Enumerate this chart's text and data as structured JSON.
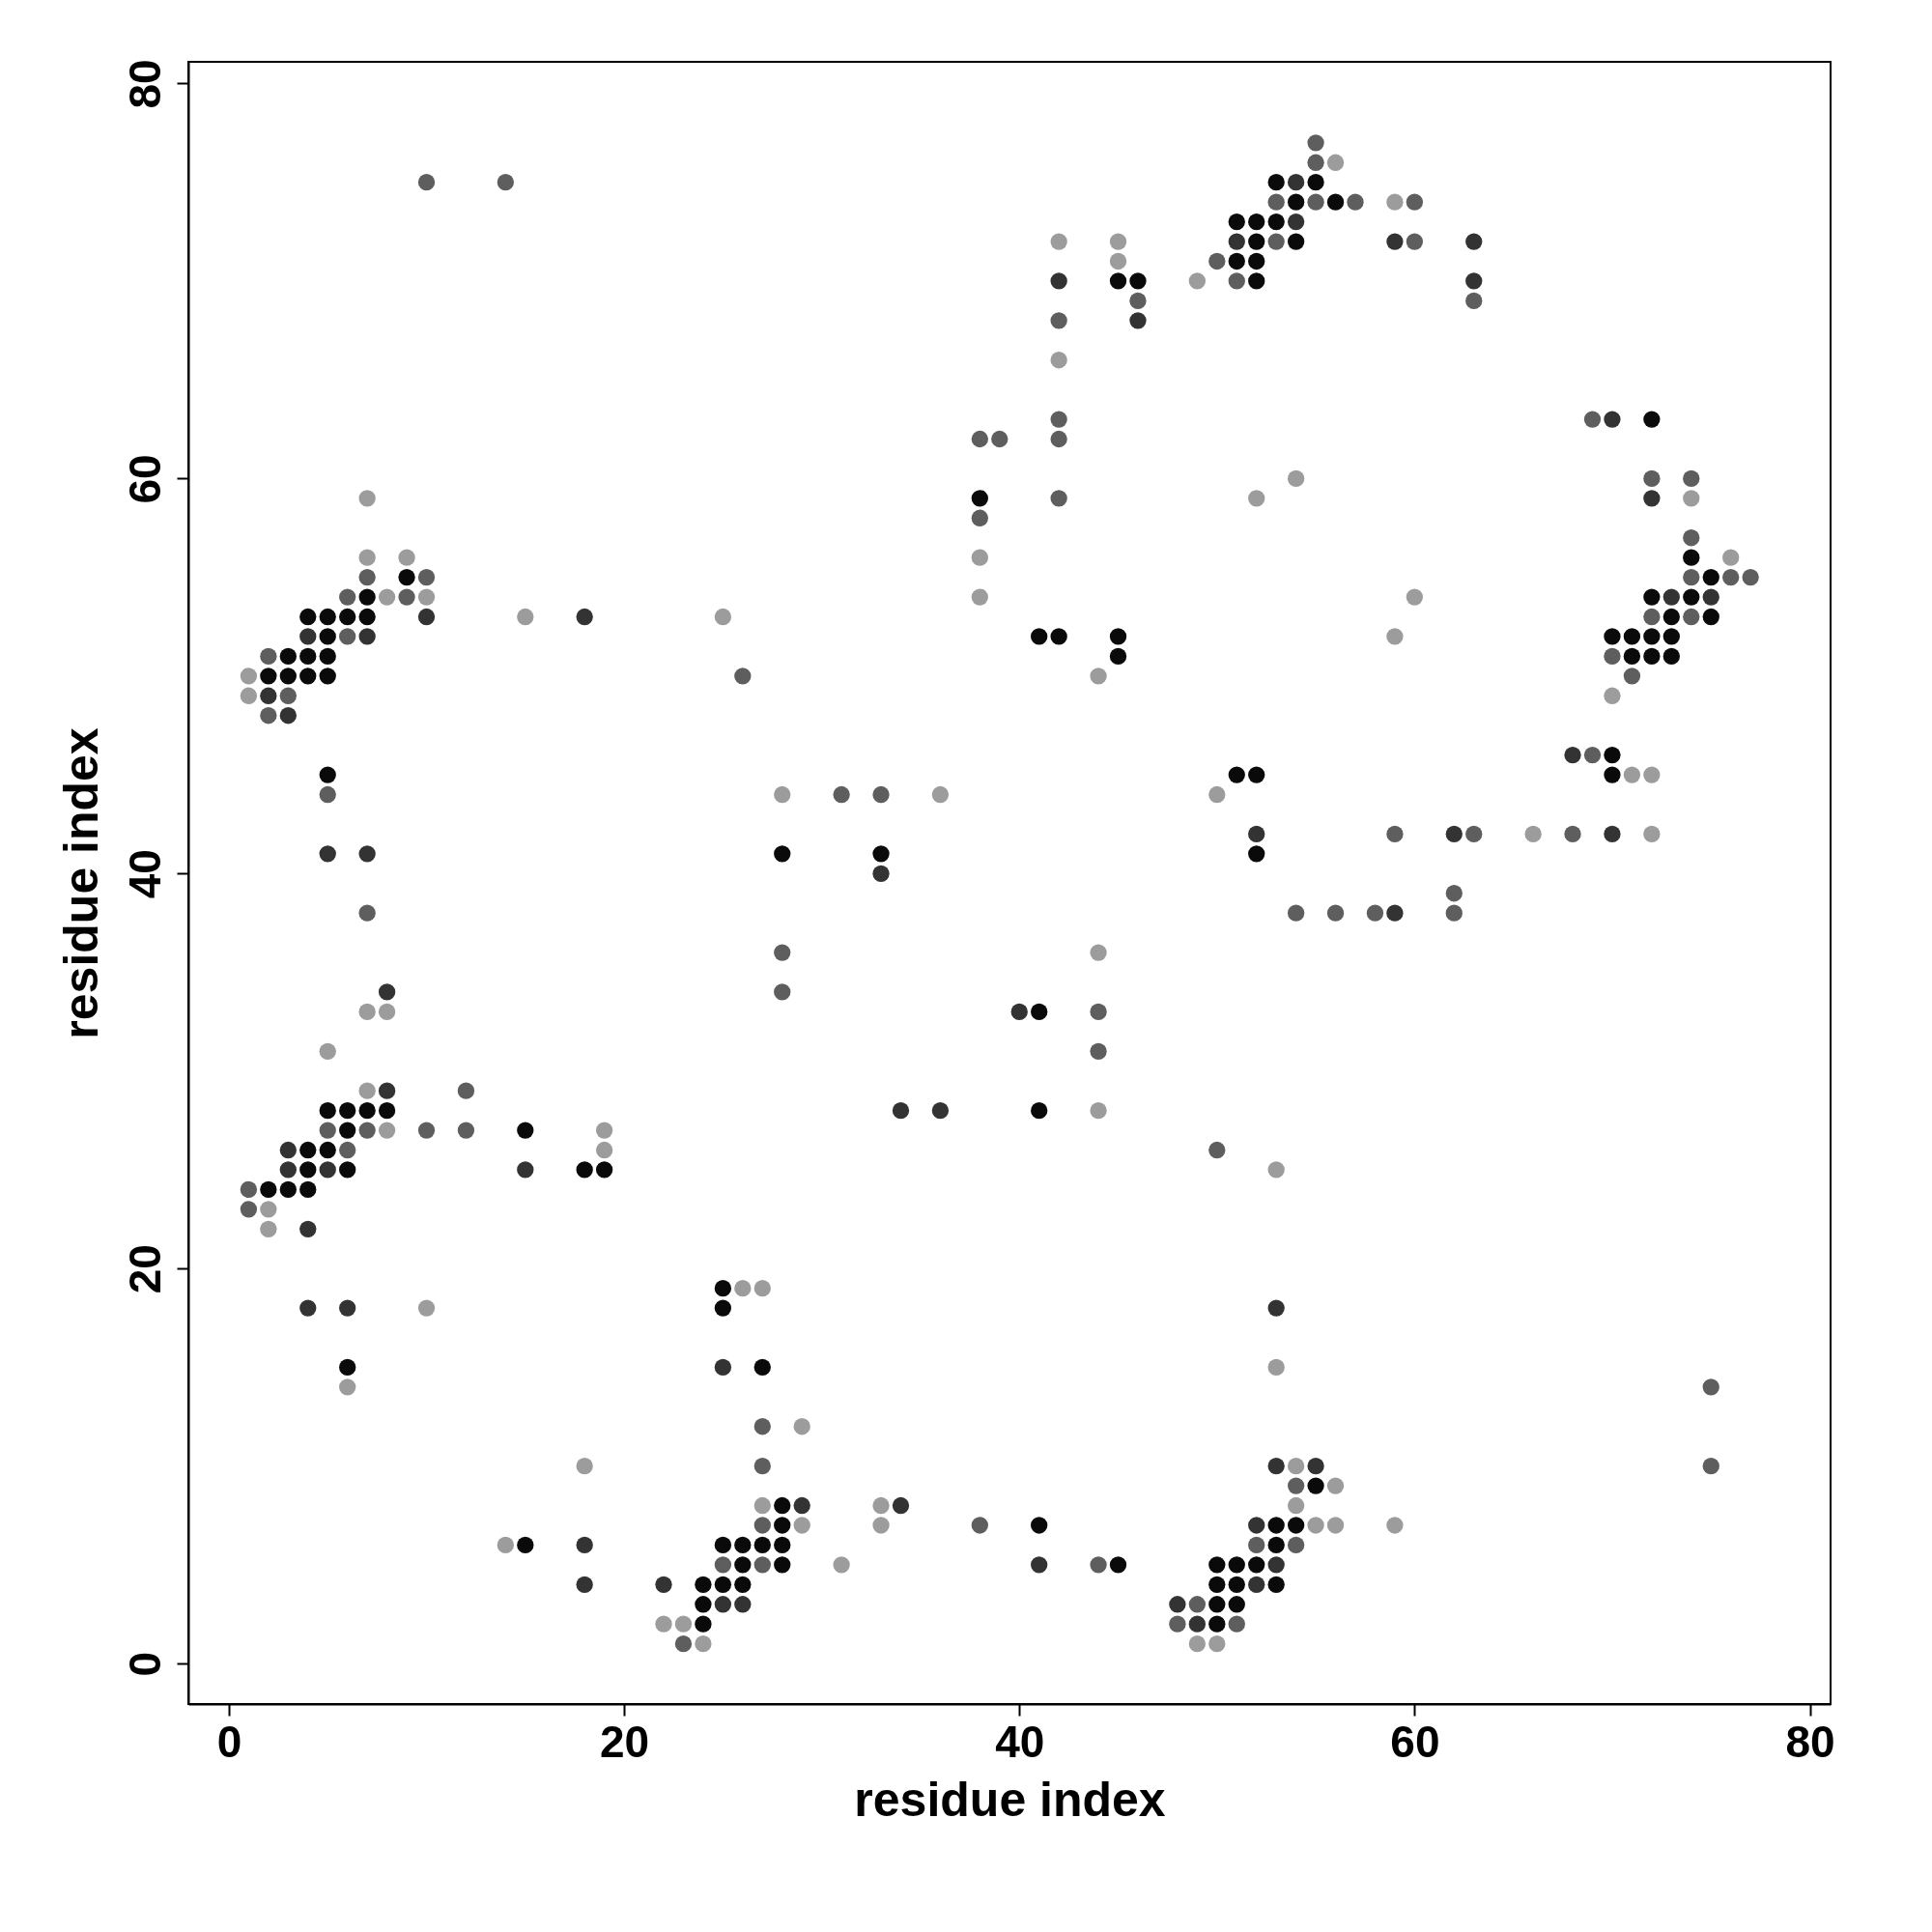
{
  "chart_data": {
    "type": "scatter",
    "xlabel": "residue index",
    "ylabel": "residue index",
    "xlim": [
      -2.05,
      81.05
    ],
    "ylim": [
      -2.05,
      81.1
    ],
    "xticks": [
      0,
      20,
      40,
      60,
      80
    ],
    "yticks": [
      0,
      20,
      40,
      60,
      80
    ],
    "grid": false,
    "series": [
      {
        "color": "#0a0a0a",
        "x": [
          9,
          7,
          4,
          5,
          6,
          7,
          5,
          3,
          4,
          5,
          2,
          3,
          4,
          5,
          5,
          5,
          6,
          7,
          8,
          6,
          15,
          4,
          5,
          4,
          6,
          18,
          19,
          2,
          3,
          4,
          6,
          25,
          25,
          27,
          28,
          28,
          41,
          25,
          26,
          27,
          28,
          15,
          26,
          28,
          45,
          24,
          25,
          26,
          24,
          24,
          28,
          33,
          41,
          41,
          55,
          53,
          54,
          53,
          50,
          51,
          52,
          50,
          51,
          53,
          50,
          51,
          50,
          53,
          55,
          54,
          56,
          51,
          52,
          53,
          52,
          54,
          51,
          52,
          52,
          45,
          46,
          72,
          38,
          74,
          75,
          72,
          74,
          73,
          75,
          41,
          42,
          45,
          70,
          71,
          72,
          73,
          45,
          71,
          72,
          73,
          70,
          51,
          52,
          70,
          52
        ],
        "values": [
          55,
          54,
          53,
          53,
          53,
          53,
          52,
          51,
          51,
          51,
          50,
          50,
          50,
          50,
          45,
          28,
          28,
          28,
          28,
          27,
          27,
          26,
          26,
          25,
          25,
          25,
          25,
          24,
          24,
          24,
          15,
          19,
          18,
          15,
          8,
          7,
          7,
          6,
          6,
          6,
          6,
          6,
          5,
          5,
          5,
          4,
          4,
          4,
          3,
          2,
          41,
          41,
          33,
          28,
          9,
          7,
          7,
          6,
          5,
          5,
          5,
          4,
          4,
          4,
          3,
          3,
          2,
          75,
          75,
          74,
          74,
          73,
          73,
          73,
          72,
          72,
          71,
          71,
          70,
          70,
          70,
          63,
          59,
          56,
          55,
          54,
          54,
          53,
          53,
          52,
          52,
          52,
          52,
          52,
          52,
          52,
          51,
          51,
          51,
          51,
          46,
          45,
          45,
          45,
          41
        ]
      },
      {
        "color": "#333333",
        "x": [
          10,
          18,
          4,
          7,
          2,
          3,
          5,
          7,
          8,
          8,
          3,
          3,
          5,
          15,
          4,
          4,
          6,
          25,
          29,
          34,
          18,
          41,
          22,
          18,
          25,
          26,
          33,
          40,
          34,
          36,
          53,
          53,
          55,
          52,
          53,
          52,
          48,
          49,
          54,
          54,
          51,
          59,
          63,
          42,
          63,
          46,
          70,
          72,
          73,
          75,
          68,
          52,
          62,
          70,
          59
        ],
        "values": [
          53,
          53,
          52,
          52,
          49,
          48,
          41,
          41,
          34,
          29,
          26,
          25,
          25,
          25,
          22,
          18,
          18,
          15,
          8,
          8,
          6,
          5,
          4,
          4,
          3,
          3,
          40,
          33,
          28,
          28,
          18,
          10,
          10,
          7,
          5,
          4,
          3,
          2,
          75,
          73,
          72,
          72,
          72,
          70,
          70,
          68,
          63,
          59,
          54,
          54,
          46,
          42,
          42,
          42,
          38
        ]
      },
      {
        "color": "#5e5e5e",
        "x": [
          10,
          14,
          7,
          10,
          6,
          9,
          6,
          2,
          26,
          3,
          2,
          5,
          7,
          12,
          5,
          7,
          10,
          12,
          6,
          1,
          1,
          27,
          27,
          27,
          38,
          25,
          27,
          44,
          23,
          31,
          33,
          28,
          28,
          44,
          44,
          50,
          54,
          52,
          54,
          49,
          48,
          51,
          75,
          75,
          55,
          55,
          53,
          55,
          57,
          60,
          53,
          60,
          50,
          51,
          46,
          63,
          42,
          42,
          69,
          38,
          39,
          42,
          72,
          74,
          42,
          38,
          74,
          74,
          76,
          77,
          72,
          74,
          70,
          71,
          69,
          59,
          63,
          68,
          62,
          54,
          56,
          58,
          62
        ],
        "values": [
          75,
          75,
          55,
          55,
          54,
          54,
          52,
          51,
          50,
          49,
          48,
          44,
          38,
          29,
          27,
          27,
          27,
          27,
          26,
          24,
          23,
          12,
          10,
          7,
          7,
          5,
          5,
          5,
          1,
          44,
          44,
          36,
          34,
          33,
          31,
          26,
          9,
          6,
          6,
          3,
          2,
          2,
          14,
          10,
          77,
          76,
          74,
          74,
          74,
          74,
          72,
          72,
          71,
          70,
          69,
          69,
          68,
          63,
          63,
          62,
          62,
          62,
          60,
          60,
          59,
          58,
          57,
          55,
          55,
          55,
          53,
          53,
          51,
          50,
          46,
          42,
          42,
          42,
          39,
          38,
          38,
          38,
          38
        ]
      },
      {
        "color": "#9c9c9c",
        "x": [
          7,
          7,
          9,
          8,
          10,
          15,
          25,
          1,
          1,
          28,
          36,
          7,
          8,
          5,
          7,
          8,
          19,
          19,
          2,
          2,
          10,
          6,
          26,
          27,
          29,
          18,
          27,
          33,
          29,
          33,
          14,
          31,
          22,
          23,
          24,
          44,
          44,
          53,
          53,
          54,
          56,
          54,
          55,
          56,
          59,
          49,
          50,
          56,
          59,
          42,
          45,
          45,
          49,
          42,
          54,
          52,
          74,
          38,
          76,
          38,
          60,
          59,
          44,
          70,
          71,
          72,
          50,
          66,
          72
        ],
        "values": [
          59,
          56,
          56,
          54,
          54,
          53,
          53,
          50,
          49,
          44,
          44,
          33,
          33,
          31,
          29,
          27,
          27,
          26,
          23,
          22,
          18,
          14,
          19,
          19,
          12,
          10,
          8,
          8,
          7,
          7,
          6,
          5,
          2,
          2,
          1,
          36,
          28,
          25,
          15,
          10,
          9,
          8,
          7,
          7,
          7,
          1,
          1,
          76,
          74,
          72,
          72,
          71,
          70,
          66,
          60,
          59,
          59,
          56,
          56,
          54,
          54,
          52,
          50,
          49,
          45,
          45,
          44,
          42,
          42
        ]
      }
    ]
  }
}
